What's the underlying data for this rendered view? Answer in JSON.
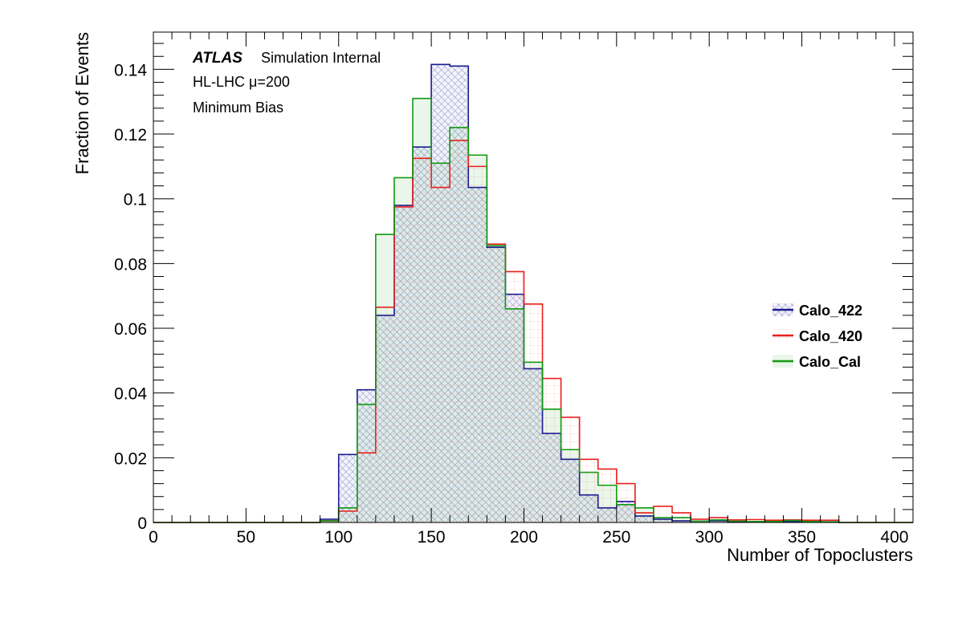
{
  "chart_data": {
    "type": "histogram",
    "xlabel": "Number of Topoclusters",
    "ylabel": "Fraction of Events",
    "xlim": [
      0,
      410
    ],
    "ylim": [
      0,
      0.1515
    ],
    "bin_width": 10,
    "x_ticks": [
      0,
      50,
      100,
      150,
      200,
      250,
      300,
      350,
      400
    ],
    "x_tick_labels": [
      "0",
      "50",
      "100",
      "150",
      "200",
      "250",
      "300",
      "350",
      "400"
    ],
    "y_ticks": [
      0,
      0.02,
      0.04,
      0.06,
      0.08,
      0.1,
      0.12,
      0.14
    ],
    "y_tick_labels": [
      "0",
      "0.02",
      "0.04",
      "0.06",
      "0.08",
      "0.1",
      "0.12",
      "0.14"
    ],
    "annotations": {
      "atlas": "ATLAS",
      "atlas_suffix": "Simulation Internal",
      "line2": "HL-LHC μ=200",
      "line3": "Minimum Bias"
    },
    "legend_position": "right",
    "series": [
      {
        "name": "Calo_422",
        "color": "#1c1c8f",
        "fill": "hatch-blue",
        "bin_starts": [
          90,
          100,
          110,
          120,
          130,
          140,
          150,
          160,
          170,
          180,
          190,
          200,
          210,
          220,
          230,
          240,
          250,
          260,
          270,
          280,
          290,
          300,
          310,
          320,
          330,
          340,
          350,
          360
        ],
        "values": [
          0.001,
          0.021,
          0.041,
          0.064,
          0.098,
          0.116,
          0.1415,
          0.141,
          0.1035,
          0.085,
          0.0705,
          0.0475,
          0.0275,
          0.0195,
          0.0085,
          0.0045,
          0.0065,
          0.002,
          0.001,
          0.0005,
          0.0004,
          0.0005,
          0.0003,
          0.0003,
          0.0004,
          0.0003,
          0.0002,
          0.0002
        ]
      },
      {
        "name": "Calo_420",
        "color": "#e8201e",
        "fill": "grid-red",
        "bin_starts": [
          90,
          100,
          110,
          120,
          130,
          140,
          150,
          160,
          170,
          180,
          190,
          200,
          210,
          220,
          230,
          240,
          250,
          260,
          270,
          280,
          290,
          300,
          310,
          320,
          330,
          340,
          350,
          360
        ],
        "values": [
          0.0005,
          0.0035,
          0.0215,
          0.0665,
          0.0975,
          0.1125,
          0.1035,
          0.118,
          0.11,
          0.086,
          0.0775,
          0.0675,
          0.0445,
          0.0325,
          0.0195,
          0.0165,
          0.012,
          0.003,
          0.005,
          0.003,
          0.001,
          0.0015,
          0.0008,
          0.0009,
          0.0007,
          0.0008,
          0.0007,
          0.0007
        ]
      },
      {
        "name": "Calo_Cal",
        "color": "#119911",
        "fill": "solid-green",
        "bin_starts": [
          90,
          100,
          110,
          120,
          130,
          140,
          150,
          160,
          170,
          180,
          190,
          200,
          210,
          220,
          230,
          240,
          250,
          260,
          270,
          280,
          290,
          300,
          310,
          320,
          330,
          340,
          350,
          360
        ],
        "values": [
          0.0005,
          0.0045,
          0.0365,
          0.089,
          0.1065,
          0.131,
          0.111,
          0.122,
          0.1135,
          0.0855,
          0.066,
          0.0495,
          0.035,
          0.0225,
          0.0155,
          0.0115,
          0.0055,
          0.0045,
          0.0015,
          0.0015,
          0.0004,
          0.0008,
          0.0004,
          0.0003,
          0.0003,
          0.0006,
          0.0003,
          0.0002
        ]
      }
    ]
  }
}
